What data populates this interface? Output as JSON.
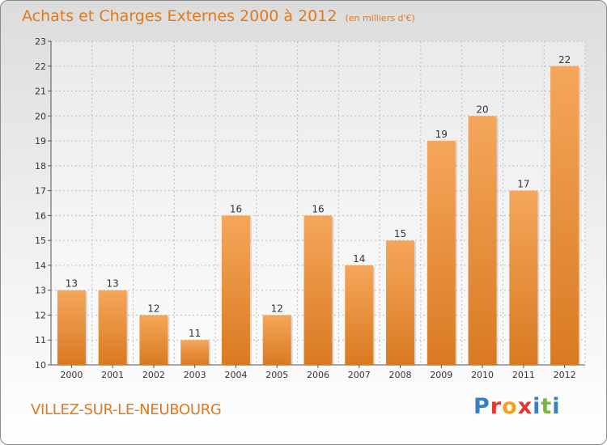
{
  "header": {
    "title": "Achats et Charges Externes 2000 à 2012",
    "subtitle": "(en milliers d'€)"
  },
  "footer": {
    "commune": "VILLEZ-SUR-LE-NEUBOURG",
    "logo_text": "Proxiti",
    "logo_colors": [
      "#3a7fc1",
      "#e03a2e",
      "#f2a01f",
      "#e03a2e",
      "#3a7fc1",
      "#79b73a",
      "#3a7fc1"
    ]
  },
  "colors": {
    "title": "#e07a1e",
    "bar_light": "#f5a65b",
    "bar_dark": "#d97a22",
    "grid": "#bcbcbc",
    "axis": "#555555"
  },
  "chart_data": {
    "type": "bar",
    "categories": [
      "2000",
      "2001",
      "2002",
      "2003",
      "2004",
      "2005",
      "2006",
      "2007",
      "2008",
      "2009",
      "2010",
      "2011",
      "2012"
    ],
    "values": [
      13,
      13,
      12,
      11,
      16,
      12,
      16,
      14,
      15,
      19,
      20,
      17,
      22
    ],
    "ylim": [
      10,
      23
    ],
    "yticks": [
      10,
      11,
      12,
      13,
      14,
      15,
      16,
      17,
      18,
      19,
      20,
      21,
      22,
      23
    ],
    "grid": true
  }
}
